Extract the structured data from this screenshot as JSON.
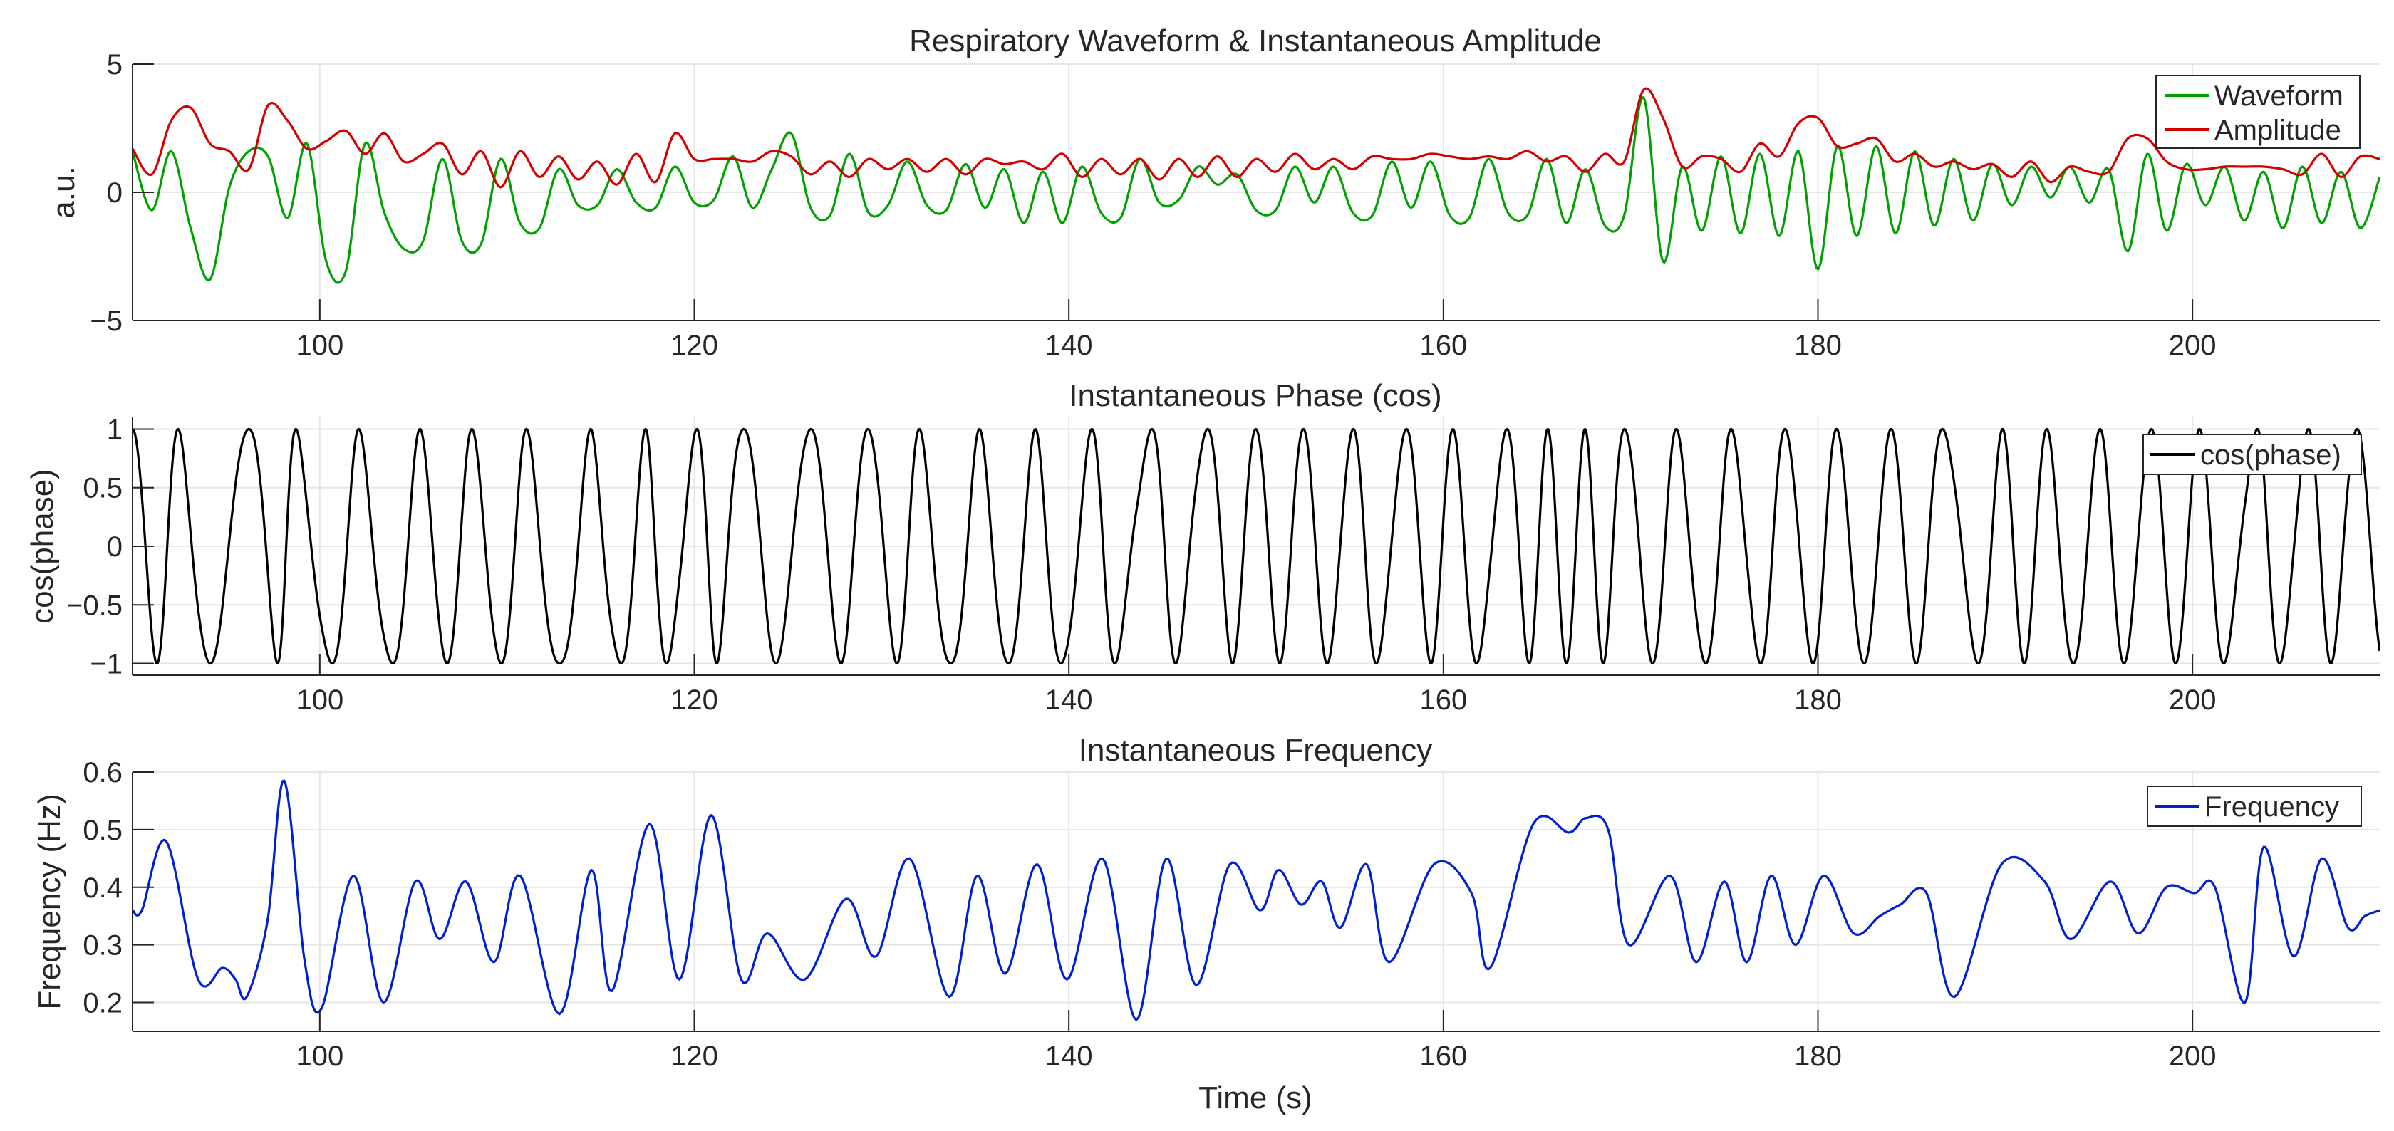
{
  "figure": {
    "xlabel": "Time (s)",
    "colors": {
      "waveform": "#00a000",
      "amplitude": "#d40000",
      "phase": "#000000",
      "frequency": "#0020d0",
      "grid": "#e6e6e6",
      "axis": "#262626"
    }
  },
  "chart_data": [
    {
      "type": "line",
      "title": "Respiratory Waveform & Instantaneous Amplitude",
      "xlabel": "",
      "ylabel": "a.u.",
      "xlim": [
        90,
        210
      ],
      "ylim": [
        -5,
        5
      ],
      "xticks": [
        100,
        120,
        140,
        160,
        180,
        200
      ],
      "yticks": [
        -5,
        0,
        5
      ],
      "ytick_labels": [
        "−5",
        "0",
        "5"
      ],
      "grid": true,
      "legend": "top-right",
      "series": [
        {
          "name": "Waveform",
          "color": "#00a000",
          "values": [
            1.6,
            -0.7,
            1.6,
            -1.4,
            -3.4,
            0.2,
            1.6,
            1.4,
            -1.0,
            1.9,
            -2.7,
            -3.1,
            1.9,
            -0.8,
            -2.2,
            -1.9,
            1.3,
            -1.9,
            -2.0,
            1.3,
            -1.2,
            -1.4,
            0.9,
            -0.5,
            -0.5,
            0.9,
            -0.4,
            -0.6,
            1.0,
            -0.4,
            -0.3,
            1.4,
            -0.6,
            0.9,
            2.3,
            -0.6,
            -0.9,
            1.5,
            -0.8,
            -0.5,
            1.2,
            -0.5,
            -0.7,
            1.1,
            -0.6,
            0.9,
            -1.2,
            0.8,
            -1.2,
            1.0,
            -0.8,
            -1.0,
            1.3,
            -0.4,
            -0.3,
            1.0,
            0.3,
            0.7,
            -0.7,
            -0.7,
            1.0,
            -0.4,
            1.0,
            -0.8,
            -0.9,
            1.2,
            -0.6,
            1.2,
            -0.9,
            -1.0,
            1.3,
            -0.8,
            -0.9,
            1.3,
            -1.2,
            0.9,
            -1.3,
            -0.9,
            3.7,
            -2.7,
            1.0,
            -1.5,
            1.4,
            -1.6,
            1.5,
            -1.7,
            1.6,
            -3.0,
            1.8,
            -1.7,
            1.8,
            -1.6,
            1.6,
            -1.3,
            1.3,
            -1.1,
            1.1,
            -0.5,
            1.0,
            -0.2,
            1.0,
            -0.4,
            0.9,
            -2.3,
            1.5,
            -1.5,
            1.1,
            -0.5,
            1.0,
            -1.1,
            0.8,
            -1.4,
            1.0,
            -1.2,
            0.8,
            -1.4,
            0.6
          ]
        },
        {
          "name": "Amplitude",
          "color": "#d40000",
          "values": [
            1.7,
            0.7,
            2.8,
            3.3,
            1.9,
            1.6,
            0.9,
            3.4,
            2.8,
            1.7,
            2.0,
            2.4,
            1.5,
            2.3,
            1.2,
            1.5,
            1.9,
            0.7,
            1.6,
            0.2,
            1.6,
            0.6,
            1.4,
            0.5,
            1.2,
            0.3,
            1.5,
            0.4,
            2.3,
            1.3,
            1.3,
            1.3,
            1.2,
            1.6,
            1.4,
            0.7,
            1.2,
            0.6,
            1.3,
            0.9,
            1.3,
            0.8,
            1.3,
            0.7,
            1.3,
            1.1,
            1.2,
            0.9,
            1.5,
            0.6,
            1.3,
            0.7,
            1.3,
            0.5,
            1.3,
            0.6,
            1.4,
            0.6,
            1.3,
            0.8,
            1.5,
            0.9,
            1.3,
            0.9,
            1.4,
            1.3,
            1.3,
            1.5,
            1.4,
            1.3,
            1.4,
            1.3,
            1.6,
            1.2,
            1.4,
            0.8,
            1.5,
            1.2,
            4.0,
            2.9,
            1.0,
            1.4,
            1.3,
            0.8,
            1.9,
            1.4,
            2.7,
            2.9,
            1.8,
            1.9,
            2.1,
            1.2,
            1.5,
            1.0,
            1.2,
            0.9,
            1.1,
            0.6,
            1.2,
            0.4,
            1.0,
            0.8,
            0.8,
            2.1,
            2.1,
            1.2,
            0.9,
            0.9,
            1.0,
            1.0,
            1.0,
            0.9,
            0.7,
            1.5,
            0.6,
            1.4,
            1.3
          ]
        }
      ]
    },
    {
      "type": "line",
      "title": "Instantaneous Phase (cos)",
      "xlabel": "",
      "ylabel": "cos(phase)",
      "xlim": [
        90,
        210
      ],
      "ylim": [
        -1.1,
        1.1
      ],
      "xticks": [
        100,
        120,
        140,
        160,
        180,
        200
      ],
      "yticks": [
        -1,
        -0.5,
        0,
        0.5,
        1
      ],
      "ytick_labels": [
        "−1",
        "−0.5",
        "0",
        "0.5",
        "1"
      ],
      "grid": true,
      "legend": "top-right",
      "series": [
        {
          "name": "cos(phase)",
          "color": "#000000",
          "derived_from_frequency": true,
          "start_time": 90,
          "start_value": 1
        }
      ]
    },
    {
      "type": "line",
      "title": "Instantaneous Frequency",
      "xlabel": "Time (s)",
      "ylabel": "Frequency (Hz)",
      "xlim": [
        90,
        210
      ],
      "ylim": [
        0.15,
        0.6
      ],
      "xticks": [
        100,
        120,
        140,
        160,
        180,
        200
      ],
      "yticks": [
        0.2,
        0.3,
        0.4,
        0.5,
        0.6
      ],
      "ytick_labels": [
        "0.2",
        "0.3",
        "0.4",
        "0.5",
        "0.6"
      ],
      "grid": true,
      "legend": "top-right",
      "series": [
        {
          "name": "Frequency",
          "color": "#0020d0",
          "x": [
            90,
            90.5,
            91.8,
            93.5,
            94.8,
            95.5,
            96.1,
            97.2,
            98.1,
            99.2,
            100.1,
            101.8,
            103.4,
            105.1,
            106.4,
            107.8,
            109.3,
            110.7,
            112.8,
            114.5,
            115.6,
            117.6,
            119.2,
            120.9,
            122.5,
            123.9,
            125.9,
            128.1,
            129.7,
            131.5,
            133.6,
            135.1,
            136.6,
            138.3,
            139.9,
            141.8,
            143.6,
            145.2,
            146.8,
            148.6,
            150.2,
            151.2,
            152.4,
            153.5,
            154.5,
            155.9,
            157.1,
            159.5,
            161.5,
            162.5,
            164.8,
            166.7,
            167.6,
            168.8,
            169.9,
            172.1,
            173.5,
            175,
            176.2,
            177.5,
            178.8,
            180.3,
            181.9,
            183.3,
            184.4,
            185.8,
            187.3,
            189.8,
            192.1,
            193.5,
            195.6,
            197.1,
            198.6,
            200.1,
            201.2,
            202.8,
            203.8,
            205.4,
            206.9,
            208.3,
            209.2,
            210
          ],
          "values": [
            0.36,
            0.36,
            0.48,
            0.24,
            0.26,
            0.24,
            0.21,
            0.34,
            0.585,
            0.27,
            0.19,
            0.42,
            0.2,
            0.41,
            0.31,
            0.41,
            0.27,
            0.42,
            0.18,
            0.43,
            0.22,
            0.51,
            0.24,
            0.525,
            0.24,
            0.32,
            0.24,
            0.38,
            0.28,
            0.45,
            0.21,
            0.42,
            0.25,
            0.44,
            0.24,
            0.45,
            0.17,
            0.45,
            0.23,
            0.44,
            0.36,
            0.43,
            0.37,
            0.41,
            0.33,
            0.44,
            0.27,
            0.44,
            0.39,
            0.26,
            0.51,
            0.495,
            0.52,
            0.5,
            0.3,
            0.42,
            0.27,
            0.41,
            0.27,
            0.42,
            0.3,
            0.42,
            0.32,
            0.35,
            0.37,
            0.39,
            0.21,
            0.44,
            0.41,
            0.31,
            0.41,
            0.32,
            0.4,
            0.39,
            0.4,
            0.2,
            0.47,
            0.28,
            0.45,
            0.33,
            0.35,
            0.36
          ]
        }
      ]
    }
  ]
}
